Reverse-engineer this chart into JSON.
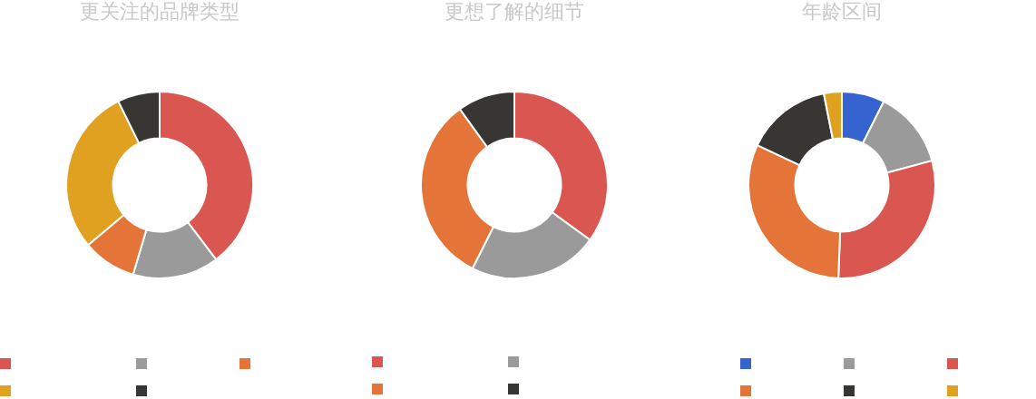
{
  "chart_data": [
    {
      "type": "donut",
      "title": "更关注的品牌类型",
      "categories": [
        null,
        null,
        null,
        null,
        null
      ],
      "values": [
        39.7,
        14.9,
        9.3,
        28.8,
        7.3
      ],
      "colors": [
        "#da5650",
        "#9a9a9a",
        "#e57438",
        "#e0a020",
        "#383633"
      ]
    },
    {
      "type": "donut",
      "title": "更想了解的细节",
      "categories": [
        null,
        null,
        null,
        null
      ],
      "values": [
        35.0,
        22.4,
        32.7,
        9.9
      ],
      "colors": [
        "#da5650",
        "#9a9a9a",
        "#e57438",
        "#383633"
      ]
    },
    {
      "type": "donut",
      "title": "年龄区间",
      "categories": [
        null,
        null,
        null,
        null,
        null,
        null
      ],
      "values": [
        7.4,
        13.4,
        29.8,
        31.4,
        14.9,
        3.1
      ],
      "colors": [
        "#3563cf",
        "#9a9a9a",
        "#da5650",
        "#e57438",
        "#383633",
        "#e0a020"
      ]
    }
  ]
}
